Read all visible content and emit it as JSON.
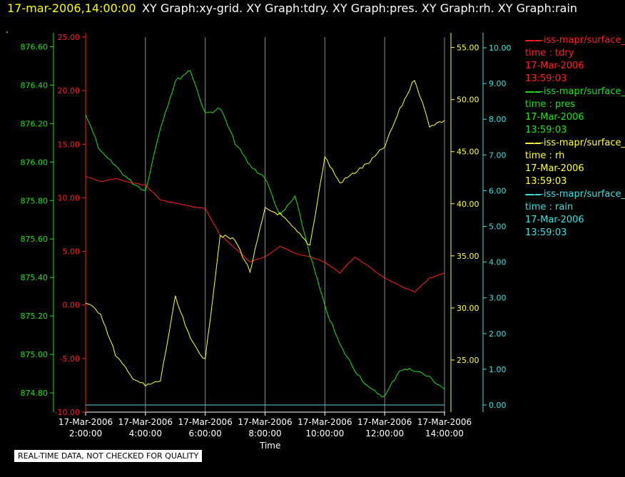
{
  "header": {
    "time": "17-mar-2006,14:00:00",
    "titles": "XY Graph:xy-grid.  XY Graph:tdry.  XY Graph:pres.  XY Graph:rh.  XY Graph:rain"
  },
  "footer_note": "REAL-TIME DATA, NOT CHECKED FOR QUALITY",
  "legend": [
    {
      "title": "iss-mapr/surface_met",
      "line1": "time : tdry",
      "line2": "17-Mar-2006",
      "line3": "13:59:03",
      "color": "#ff2020"
    },
    {
      "title": "iss-mapr/surface_met",
      "line1": "time : pres",
      "line2": "17-Mar-2006",
      "line3": "13:59:03",
      "color": "#20e020"
    },
    {
      "title": "iss-mapr/surface_met",
      "line1": "time : rh",
      "line2": "17-Mar-2006",
      "line3": "13:59:03",
      "color": "#ffff40"
    },
    {
      "title": "iss-mapr/surface_met",
      "line1": "time : rain",
      "line2": "17-Mar-2006",
      "line3": "13:59:03",
      "color": "#40e0e0"
    }
  ],
  "chart_data": {
    "type": "line",
    "xlabel": "Time",
    "x_ticks": [
      "17-Mar-2006 2:00:00",
      "17-Mar-2006 4:00:00",
      "17-Mar-2006 6:00:00",
      "17-Mar-2006 8:00:00",
      "17-Mar-2006 10:00:00",
      "17-Mar-2006 12:00:00",
      "17-Mar-2006 14:00:00"
    ],
    "x": [
      "2:00",
      "2:30",
      "3:00",
      "3:30",
      "4:00",
      "4:30",
      "5:00",
      "5:30",
      "6:00",
      "6:30",
      "7:00",
      "7:30",
      "8:00",
      "8:30",
      "9:00",
      "9:30",
      "10:00",
      "10:30",
      "11:00",
      "11:30",
      "12:00",
      "12:30",
      "13:00",
      "13:30",
      "14:00"
    ],
    "axes": [
      {
        "id": "pres",
        "color": "#20e020",
        "min": 874.7,
        "max": 876.65,
        "ticks": [
          "874.80",
          "875.00",
          "875.20",
          "875.40",
          "875.60",
          "875.80",
          "876.00",
          "876.20",
          "876.40",
          "876.60"
        ]
      },
      {
        "id": "tdry",
        "color": "#ff2020",
        "min": -10,
        "max": 25,
        "ticks": [
          "-10.00",
          "-5.00",
          "0.00",
          "5.00",
          "10.00",
          "15.00",
          "20.00",
          "25.00"
        ]
      },
      {
        "id": "rh",
        "color": "#ffff40",
        "min": 20,
        "max": 56,
        "ticks": [
          "25.00",
          "30.00",
          "35.00",
          "40.00",
          "45.00",
          "50.00",
          "55.00"
        ]
      },
      {
        "id": "rain",
        "color": "#40e0e0",
        "min": -0.2,
        "max": 10.3,
        "ticks": [
          "0.00",
          "1.00",
          "2.00",
          "3.00",
          "4.00",
          "5.00",
          "6.00",
          "7.00",
          "8.00",
          "9.00",
          "10.00"
        ]
      }
    ],
    "series": [
      {
        "name": "tdry",
        "axis": "tdry",
        "color": "#ff2020",
        "values": [
          12.0,
          11.5,
          11.8,
          11.4,
          11.2,
          9.8,
          9.5,
          9.2,
          9.0,
          6.5,
          5.3,
          4.0,
          4.5,
          5.5,
          4.8,
          4.5,
          4.0,
          3.0,
          4.5,
          3.5,
          2.5,
          1.8,
          1.2,
          2.5,
          3.0
        ]
      },
      {
        "name": "pres",
        "axis": "pres",
        "color": "#20e020",
        "values": [
          876.25,
          876.05,
          875.98,
          875.9,
          875.85,
          876.18,
          876.42,
          876.48,
          876.25,
          876.28,
          876.1,
          875.98,
          875.92,
          875.72,
          875.82,
          875.52,
          875.25,
          875.05,
          874.92,
          874.82,
          874.78,
          874.92,
          874.92,
          874.88,
          874.82
        ]
      },
      {
        "name": "rh",
        "axis": "rh",
        "color": "#ffff40",
        "values": [
          30.5,
          29.5,
          25.5,
          23.5,
          22.5,
          23.0,
          31.0,
          27.0,
          25.0,
          37.0,
          36.5,
          33.5,
          39.5,
          39.0,
          37.5,
          36.0,
          44.5,
          42.0,
          43.0,
          44.0,
          45.5,
          49.0,
          52.0,
          47.5,
          48.0
        ]
      },
      {
        "name": "rain",
        "axis": "rain",
        "color": "#40e0e0",
        "values": [
          0.0,
          0.0,
          0.0,
          0.0,
          0.0,
          0.0,
          0.0,
          0.0,
          0.0,
          0.0,
          0.0,
          0.0,
          0.0,
          0.0,
          0.0,
          0.0,
          0.0,
          0.0,
          0.0,
          0.0,
          0.0,
          0.0,
          0.0,
          0.0,
          0.0
        ]
      }
    ]
  }
}
